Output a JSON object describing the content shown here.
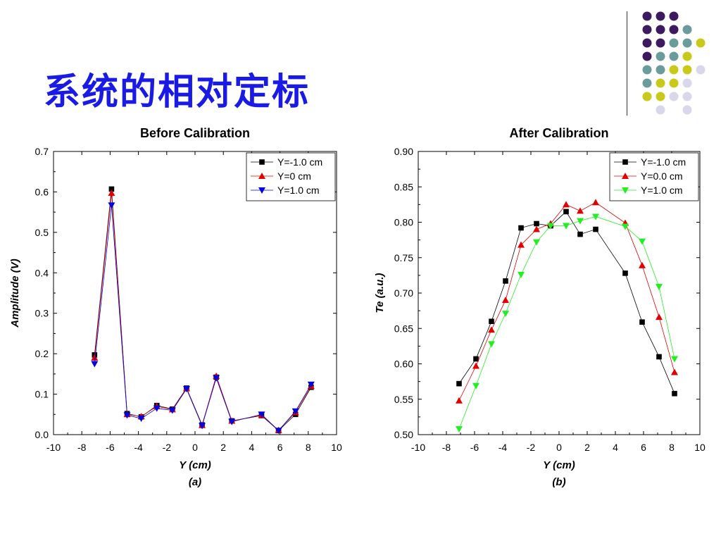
{
  "slide": {
    "title": "系统的相对定标"
  },
  "decoration": {
    "dot_colors": {
      "purple": "#3d1a5f",
      "teal": "#6b9c9c",
      "yellow": "#c9c91a",
      "lavender": "#d8d8ea"
    },
    "rows": [
      [
        "purple",
        "purple",
        "purple"
      ],
      [
        "purple",
        "purple",
        "purple",
        "teal"
      ],
      [
        "purple",
        "purple",
        "teal",
        "teal",
        "yellow"
      ],
      [
        "purple",
        "teal",
        "teal",
        "yellow"
      ],
      [
        "teal",
        "teal",
        "yellow",
        "yellow",
        "lavender"
      ],
      [
        "teal",
        "yellow",
        "yellow",
        "lavender"
      ],
      [
        "yellow",
        "yellow",
        "lavender",
        "lavender"
      ],
      [
        "",
        "lavender",
        "",
        "lavender"
      ]
    ]
  },
  "chart_data": [
    {
      "type": "line",
      "title": "Before Calibration",
      "xlabel": "Y (cm)",
      "ylabel": "Amplitude (V)",
      "caption": "(a)",
      "xlim": [
        -10,
        10
      ],
      "ylim": [
        0.0,
        0.7
      ],
      "xticks": [
        -10,
        -8,
        -6,
        -4,
        -2,
        0,
        2,
        4,
        6,
        8,
        10
      ],
      "yticks": [
        0.0,
        0.1,
        0.2,
        0.3,
        0.4,
        0.5,
        0.6,
        0.7
      ],
      "ytick_decimals": 1,
      "legend_position": "top-right",
      "series": [
        {
          "name": "Y=-1.0 cm",
          "color": "#000000",
          "marker": "square",
          "x": [
            -7.1,
            -5.9,
            -4.8,
            -3.8,
            -2.7,
            -1.6,
            -0.6,
            0.5,
            1.5,
            2.6,
            4.7,
            5.9,
            7.1,
            8.2
          ],
          "y": [
            0.197,
            0.607,
            0.052,
            0.044,
            0.072,
            0.063,
            0.115,
            0.024,
            0.142,
            0.034,
            0.047,
            0.01,
            0.05,
            0.117
          ]
        },
        {
          "name": "Y=0 cm",
          "color": "#e00000",
          "marker": "triangle-up",
          "x": [
            -7.1,
            -5.9,
            -4.8,
            -3.8,
            -2.7,
            -1.6,
            -0.6,
            0.5,
            1.5,
            2.6,
            4.7,
            5.9,
            7.1,
            8.2
          ],
          "y": [
            0.19,
            0.597,
            0.05,
            0.045,
            0.07,
            0.062,
            0.114,
            0.023,
            0.145,
            0.034,
            0.048,
            0.011,
            0.055,
            0.12
          ]
        },
        {
          "name": "Y=1.0 cm",
          "color": "#0000e0",
          "marker": "triangle-down",
          "x": [
            -7.1,
            -5.9,
            -4.8,
            -3.8,
            -2.7,
            -1.6,
            -0.6,
            0.5,
            1.5,
            2.6,
            4.7,
            5.9,
            7.1,
            8.2
          ],
          "y": [
            0.175,
            0.567,
            0.048,
            0.04,
            0.065,
            0.06,
            0.113,
            0.022,
            0.14,
            0.032,
            0.05,
            0.01,
            0.058,
            0.124
          ]
        }
      ]
    },
    {
      "type": "line",
      "title": "After Calibration",
      "xlabel": "Y (cm)",
      "ylabel": "Te (a.u.)",
      "caption": "(b)",
      "xlim": [
        -10,
        10
      ],
      "ylim": [
        0.5,
        0.9
      ],
      "xticks": [
        -10,
        -8,
        -6,
        -4,
        -2,
        0,
        2,
        4,
        6,
        8,
        10
      ],
      "yticks": [
        0.5,
        0.55,
        0.6,
        0.65,
        0.7,
        0.75,
        0.8,
        0.85,
        0.9
      ],
      "ytick_decimals": 2,
      "legend_position": "top-right",
      "series": [
        {
          "name": "Y=-1.0 cm",
          "color": "#000000",
          "marker": "square",
          "x": [
            -7.1,
            -5.9,
            -4.8,
            -3.8,
            -2.7,
            -1.6,
            -0.6,
            0.5,
            1.5,
            2.6,
            4.7,
            5.9,
            7.1,
            8.2
          ],
          "y": [
            0.572,
            0.607,
            0.66,
            0.717,
            0.792,
            0.798,
            0.795,
            0.815,
            0.783,
            0.79,
            0.728,
            0.659,
            0.61,
            0.558
          ]
        },
        {
          "name": "Y=0.0 cm",
          "color": "#e00000",
          "marker": "triangle-up",
          "x": [
            -7.1,
            -5.9,
            -4.8,
            -3.8,
            -2.7,
            -1.6,
            -0.6,
            0.5,
            1.5,
            2.6,
            4.7,
            5.9,
            7.1,
            8.2
          ],
          "y": [
            0.548,
            0.597,
            0.648,
            0.69,
            0.768,
            0.79,
            0.798,
            0.825,
            0.816,
            0.828,
            0.799,
            0.739,
            0.666,
            0.588
          ]
        },
        {
          "name": "Y=1.0 cm",
          "color": "#22ee22",
          "marker": "triangle-down",
          "x": [
            -7.1,
            -5.9,
            -4.8,
            -3.8,
            -2.7,
            -1.6,
            -0.6,
            0.5,
            1.5,
            2.6,
            4.7,
            5.9,
            7.1,
            8.2
          ],
          "y": [
            0.508,
            0.569,
            0.628,
            0.671,
            0.726,
            0.772,
            0.795,
            0.795,
            0.802,
            0.808,
            0.794,
            0.773,
            0.709,
            0.607
          ]
        }
      ]
    }
  ]
}
